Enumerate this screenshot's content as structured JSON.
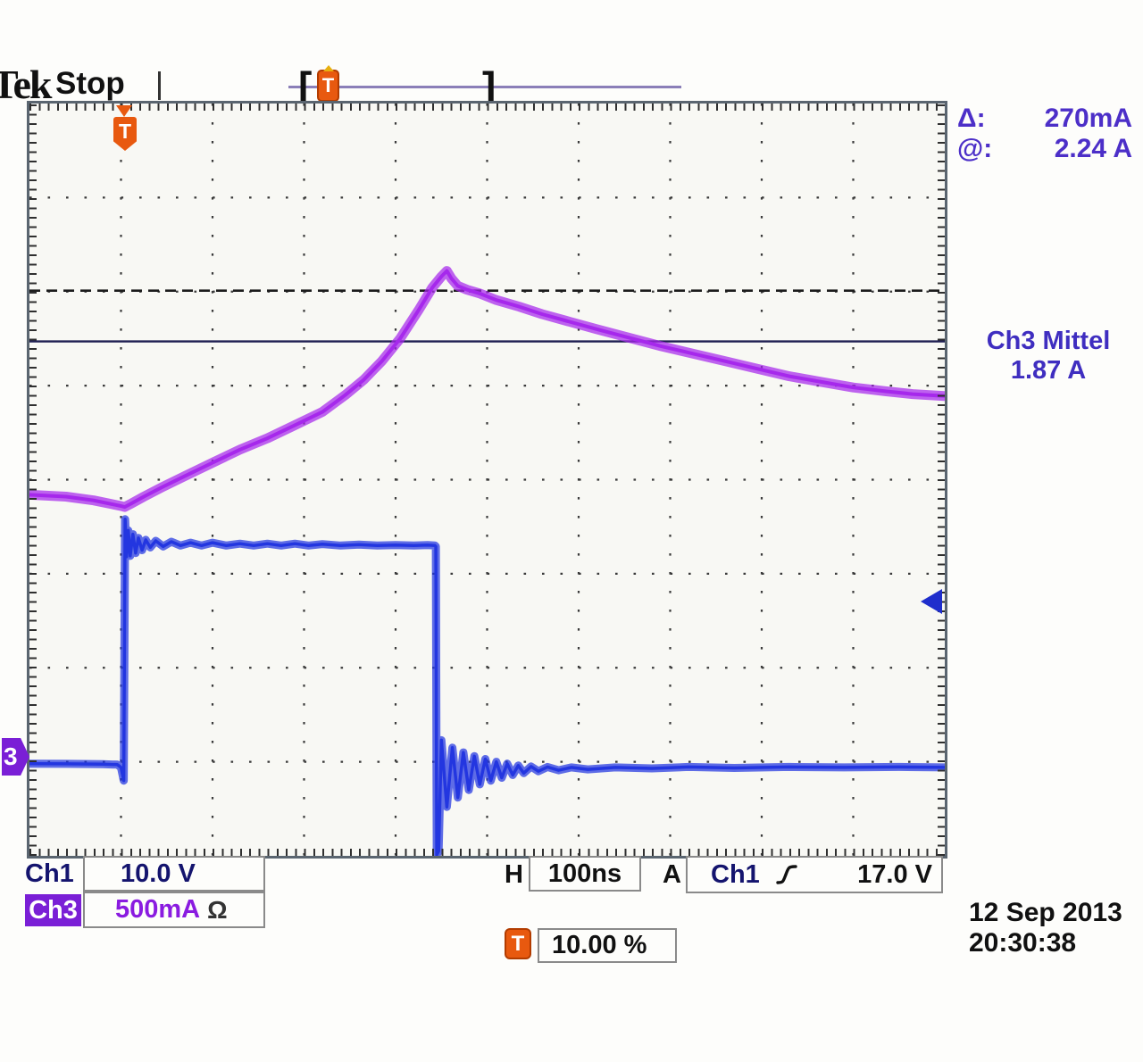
{
  "header": {
    "logo": "Tek",
    "status": "Stop"
  },
  "record_bar": {
    "left_bracket": "[",
    "right_bracket": "]",
    "icon": "T"
  },
  "readouts_right": {
    "delta_label": "Δ:",
    "delta_value": "270mA",
    "at_label": "@:",
    "at_value": "2.24 A",
    "ch3_mean_label": "Ch3 Mittel",
    "ch3_mean_value": "1.87 A"
  },
  "channel_readouts": {
    "ch1_label": "Ch1",
    "ch1_scale": "10.0 V",
    "ch3_label": "Ch3",
    "ch3_scale": "500mA",
    "ch3_probe_unit": "Ω"
  },
  "horizontal": {
    "label": "H",
    "value": "100ns"
  },
  "trigger": {
    "a_label": "A",
    "source": "Ch1",
    "level": "17.0 V",
    "marker": "T",
    "position_value": "10.00 %",
    "position_icon": "T"
  },
  "datetime": {
    "date": "12 Sep 2013",
    "time": "20:30:38"
  },
  "markers": {
    "ch3_ground": "3"
  },
  "colors": {
    "ch1_trace": "#2336e0",
    "ch3_trace": "#a628ec",
    "accent_orange": "#e8590f",
    "readout_purple": "#4c2fc8",
    "navy_text": "#14146e",
    "grid_dot": "#3a3a3a",
    "cursor_dashed": "#1c1c1c",
    "cursor_solid": "#1e1e52"
  },
  "chart_data": {
    "type": "line",
    "title": "Oscilloscope capture: Ch1 gate pulse and Ch3 inductor current",
    "x_unit": "ns",
    "time_per_div_ns": 100,
    "divisions_x": 10,
    "divisions_y": 8,
    "trigger_position_pct": 10,
    "grid": "dotted",
    "cursors": {
      "type": "amplitude",
      "channel": "Ch3",
      "cursor1_A": 2.505,
      "cursor2_A": 2.235,
      "delta_readout": "270mA",
      "at_readout": "2.24 A"
    },
    "measurements": {
      "ch3_mean": "1.87 A"
    },
    "trigger": {
      "source": "Ch1",
      "slope": "rising",
      "level_V": 17.0,
      "level_series": "Ch1"
    },
    "series": [
      {
        "name": "Ch3",
        "unit": "A",
        "per_div": 0.5,
        "ground_div_from_top": 7,
        "color": "#a628ec",
        "core_width": 4,
        "halo_width": 11,
        "points": [
          [
            0,
            1.42
          ],
          [
            40,
            1.41
          ],
          [
            70,
            1.39
          ],
          [
            90,
            1.37
          ],
          [
            100,
            1.36
          ],
          [
            104,
            1.355
          ],
          [
            110,
            1.37
          ],
          [
            125,
            1.41
          ],
          [
            145,
            1.46
          ],
          [
            170,
            1.52
          ],
          [
            200,
            1.59
          ],
          [
            230,
            1.66
          ],
          [
            260,
            1.72
          ],
          [
            290,
            1.79
          ],
          [
            320,
            1.86
          ],
          [
            345,
            1.95
          ],
          [
            365,
            2.03
          ],
          [
            385,
            2.13
          ],
          [
            405,
            2.25
          ],
          [
            425,
            2.4
          ],
          [
            440,
            2.52
          ],
          [
            450,
            2.58
          ],
          [
            456,
            2.61
          ],
          [
            461,
            2.57
          ],
          [
            468,
            2.53
          ],
          [
            478,
            2.51
          ],
          [
            492,
            2.49
          ],
          [
            510,
            2.455
          ],
          [
            535,
            2.42
          ],
          [
            560,
            2.38
          ],
          [
            590,
            2.34
          ],
          [
            620,
            2.3
          ],
          [
            655,
            2.255
          ],
          [
            690,
            2.21
          ],
          [
            725,
            2.17
          ],
          [
            760,
            2.13
          ],
          [
            795,
            2.09
          ],
          [
            830,
            2.05
          ],
          [
            865,
            2.02
          ],
          [
            900,
            1.99
          ],
          [
            935,
            1.97
          ],
          [
            965,
            1.955
          ],
          [
            1000,
            1.945
          ]
        ]
      },
      {
        "name": "Ch1",
        "unit": "V",
        "per_div": 10,
        "ground_div_from_top": 7,
        "color": "#2336e0",
        "core_width": 3.5,
        "halo_width": 9,
        "points": [
          [
            0,
            -0.2
          ],
          [
            40,
            -0.22
          ],
          [
            80,
            -0.25
          ],
          [
            96,
            -0.3
          ],
          [
            100,
            -0.6
          ],
          [
            103,
            -2.0
          ],
          [
            104.5,
            25.8
          ],
          [
            106,
            21.8
          ],
          [
            108,
            24.6
          ],
          [
            110,
            21.9
          ],
          [
            113,
            24.2
          ],
          [
            116,
            22.2
          ],
          [
            119,
            23.8
          ],
          [
            123,
            22.5
          ],
          [
            127,
            23.6
          ],
          [
            132,
            22.8
          ],
          [
            138,
            23.5
          ],
          [
            146,
            22.9
          ],
          [
            155,
            23.4
          ],
          [
            165,
            23.0
          ],
          [
            176,
            23.3
          ],
          [
            188,
            23.0
          ],
          [
            200,
            23.3
          ],
          [
            215,
            23.0
          ],
          [
            230,
            23.2
          ],
          [
            245,
            23.0
          ],
          [
            260,
            23.2
          ],
          [
            275,
            23.0
          ],
          [
            290,
            23.2
          ],
          [
            305,
            23.0
          ],
          [
            320,
            23.15
          ],
          [
            340,
            23.0
          ],
          [
            360,
            23.1
          ],
          [
            380,
            23.0
          ],
          [
            400,
            23.05
          ],
          [
            420,
            23.0
          ],
          [
            435,
            23.05
          ],
          [
            443,
            23.0
          ],
          [
            444,
            22.9
          ],
          [
            445,
            -9.9
          ],
          [
            447,
            -9.5
          ],
          [
            450,
            2.3
          ],
          [
            456,
            -4.8
          ],
          [
            462,
            1.5
          ],
          [
            468,
            -3.8
          ],
          [
            474,
            1.0
          ],
          [
            480,
            -3.0
          ],
          [
            486,
            0.6
          ],
          [
            492,
            -2.4
          ],
          [
            498,
            0.3
          ],
          [
            504,
            -2.0
          ],
          [
            510,
            0.0
          ],
          [
            516,
            -1.7
          ],
          [
            522,
            -0.2
          ],
          [
            528,
            -1.4
          ],
          [
            534,
            -0.4
          ],
          [
            540,
            -1.2
          ],
          [
            548,
            -0.5
          ],
          [
            556,
            -1.0
          ],
          [
            566,
            -0.55
          ],
          [
            578,
            -0.9
          ],
          [
            592,
            -0.6
          ],
          [
            610,
            -0.8
          ],
          [
            640,
            -0.6
          ],
          [
            680,
            -0.7
          ],
          [
            720,
            -0.55
          ],
          [
            770,
            -0.65
          ],
          [
            830,
            -0.55
          ],
          [
            890,
            -0.6
          ],
          [
            950,
            -0.55
          ],
          [
            1000,
            -0.6
          ]
        ]
      }
    ]
  }
}
